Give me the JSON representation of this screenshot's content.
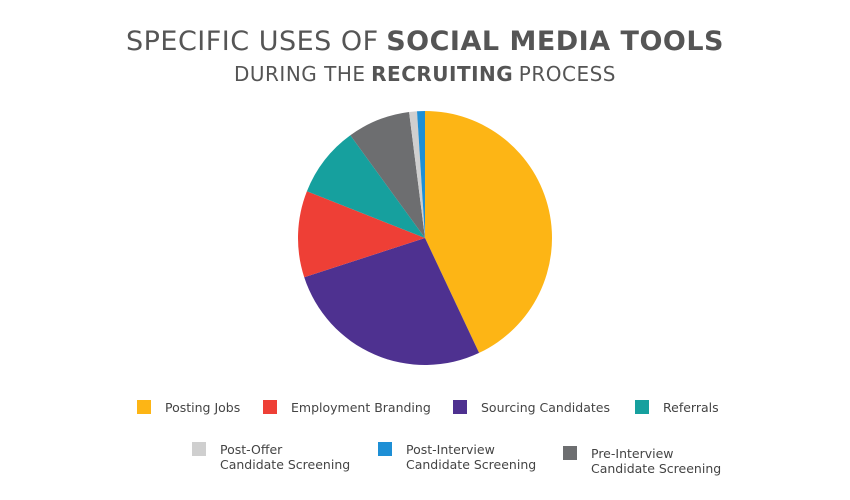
{
  "chart_data": {
    "type": "pie",
    "title": [
      "SPECIFIC USES OF",
      "SOCIAL MEDIA TOOLS"
    ],
    "subtitle": [
      "DURING THE",
      "RECRUITING",
      "PROCESS"
    ],
    "categories": [
      "Posting Jobs",
      "Sourcing Candidates",
      "Employment Branding",
      "Referrals",
      "Pre-Interview\nCandidate Screening",
      "Post-Offer\nCandidate Screening",
      "Post-Interview\nCandidate Screening"
    ],
    "values": [
      43,
      27,
      11,
      9,
      8,
      1,
      1
    ],
    "colors": [
      "#FDB515",
      "#4E3190",
      "#EE3F36",
      "#16A09E",
      "#6D6E70",
      "#CFCFCF",
      "#1E8FD5"
    ]
  }
}
